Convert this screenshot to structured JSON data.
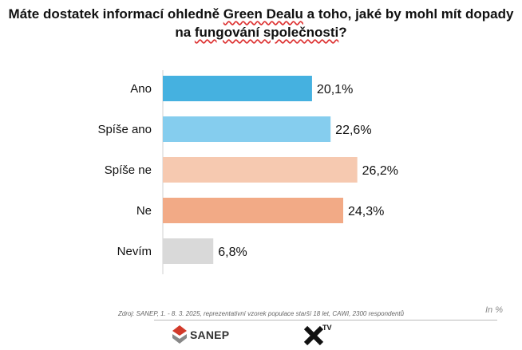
{
  "title": {
    "line1_pre": "Máte dostatek informací ohledně ",
    "line1_u": "Green Dealu",
    "line1_post": " a toho, jaké by mohl mít dopady",
    "line2_pre": "na ",
    "line2_u": "fungování společnosti",
    "line2_post": "?"
  },
  "chart_data": {
    "type": "bar",
    "orientation": "horizontal",
    "categories": [
      "Ano",
      "Spíše ano",
      "Spíše ne",
      "Ne",
      "Nevím"
    ],
    "values": [
      20.1,
      22.6,
      26.2,
      24.3,
      6.8
    ],
    "value_labels": [
      "20,1%",
      "22,6%",
      "26,2%",
      "24,3%",
      "6,8%"
    ],
    "colors": [
      "#45b1e0",
      "#85cdee",
      "#f6c9b0",
      "#f2aa86",
      "#d9d9d9"
    ],
    "xlim": [
      0,
      30
    ],
    "grid": false,
    "legend": "none"
  },
  "source": "Zdroj: SANEP, 1. - 8. 3. 2025, reprezentativní vzorek populace starší 18 let, CAWI, 2300 respondentů",
  "unit_note": "In %",
  "logos": {
    "sanep_text": "SANEP",
    "tv_text": "TV",
    "sanep_colors": [
      "#d23a2a",
      "#888888"
    ]
  }
}
